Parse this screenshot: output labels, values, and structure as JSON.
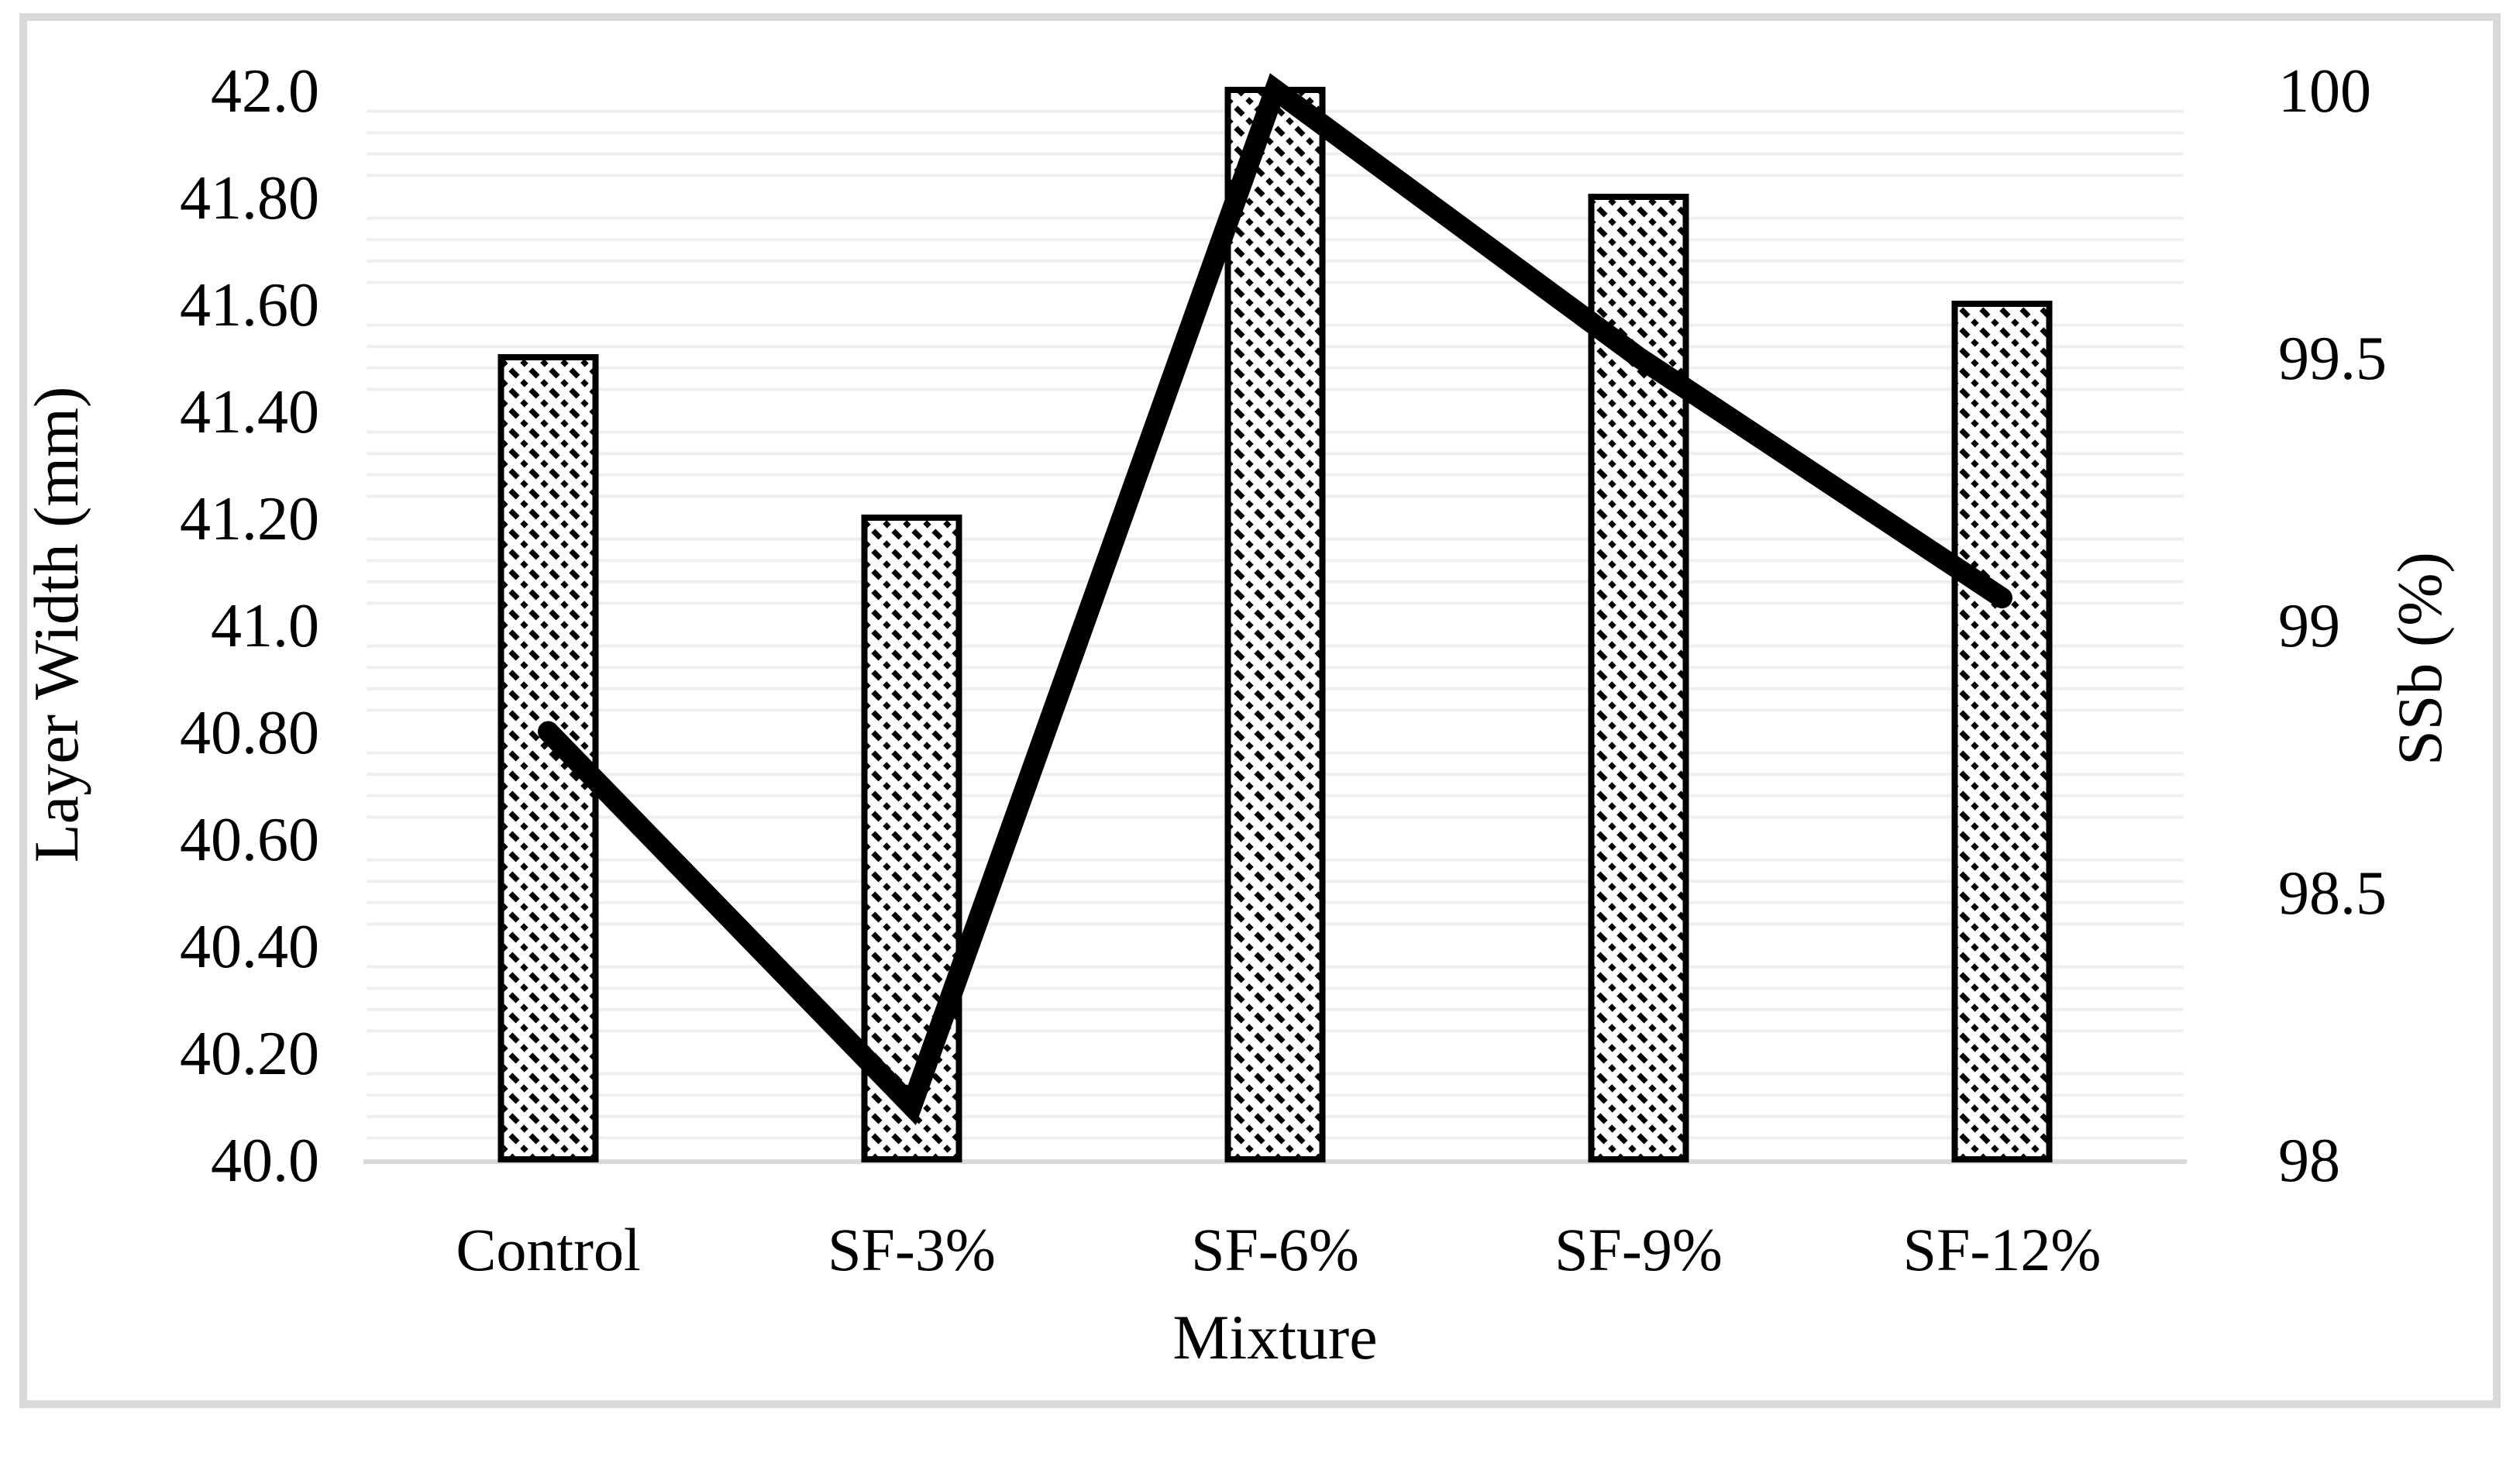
{
  "figure": {
    "background": "#ffffff",
    "border_color": "#d9d9d9"
  },
  "chart_data": {
    "type": "combo",
    "categories": [
      "Control",
      "SF-3%",
      "SF-6%",
      "SF-9%",
      "SF-12%"
    ],
    "series": [
      {
        "name": "Layer Width (mm)",
        "type": "bar",
        "axis": "left",
        "values": [
          41.5,
          41.2,
          42.0,
          41.8,
          41.6
        ],
        "fill": "diagonal-hatch",
        "stroke": "#000000"
      },
      {
        "name": "SSb (%)",
        "type": "line",
        "axis": "right",
        "values": [
          98.8,
          98.1,
          100,
          99.5,
          99.05
        ],
        "stroke": "#000000"
      }
    ],
    "x_axis": {
      "title": "Mixture",
      "axis_line_color": "#d9d9d9"
    },
    "left_axis": {
      "title": "Layer Width (mm)",
      "min": 40.0,
      "max": 42.0,
      "ticks": [
        {
          "label": "42.0",
          "value": 42.0
        },
        {
          "label": "41.80",
          "value": 41.8
        },
        {
          "label": "41.60",
          "value": 41.6
        },
        {
          "label": "41.40",
          "value": 41.4
        },
        {
          "label": "41.20",
          "value": 41.2
        },
        {
          "label": "41.0",
          "value": 41.0
        },
        {
          "label": "40.80",
          "value": 40.8
        },
        {
          "label": "40.60",
          "value": 40.6
        },
        {
          "label": "40.40",
          "value": 40.4
        },
        {
          "label": "40.20",
          "value": 40.2
        },
        {
          "label": "40.0",
          "value": 40.0
        }
      ]
    },
    "right_axis": {
      "title": "SSb (%)",
      "min": 98.0,
      "max": 100.0,
      "ticks": [
        {
          "label": "100",
          "value": 100.0
        },
        {
          "label": "99.5",
          "value": 99.5
        },
        {
          "label": "99",
          "value": 99.0
        },
        {
          "label": "98.5",
          "value": 98.5
        },
        {
          "label": "98",
          "value": 98.0
        }
      ]
    },
    "gridlines": {
      "minor_step": 0.04,
      "hidden_major_step": 0.2,
      "color": "#efefef",
      "legend_position": "none",
      "grid_on": true
    }
  }
}
